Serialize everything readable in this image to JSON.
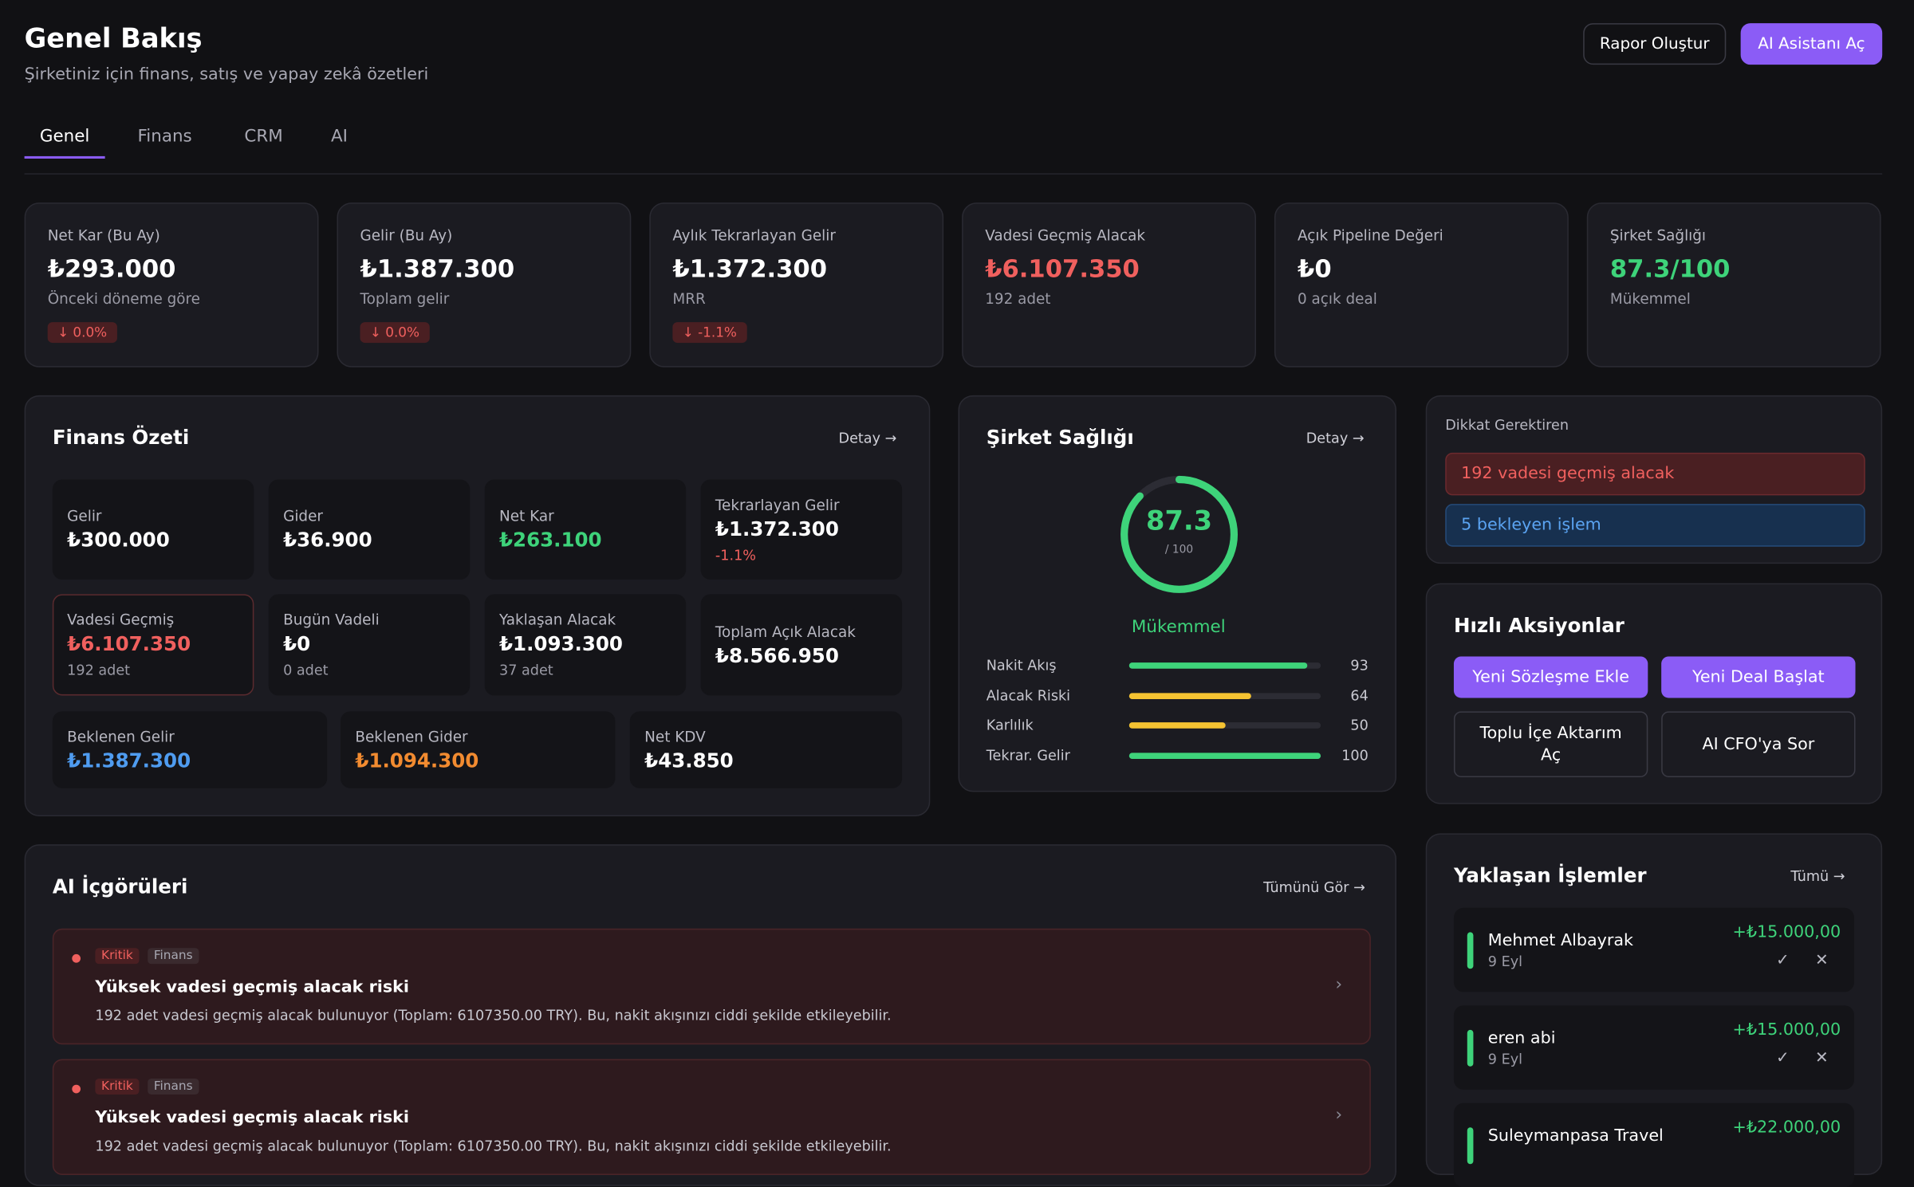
{
  "header": {
    "title": "Genel Bakış",
    "subtitle": "Şirketiniz için finans, satış ve yapay zekâ özetleri",
    "buttons": [
      "Rapor Oluştur",
      "AI Asistanı Aç"
    ]
  },
  "tabs": [
    "Genel",
    "Finans",
    "CRM",
    "AI"
  ],
  "kpis": [
    {
      "label": "Net Kar (Bu Ay)",
      "value": "₺293.000",
      "sub": "Önceki döneme göre",
      "badge": "↓ 0.0%",
      "color": "#ffffff"
    },
    {
      "label": "Gelir (Bu Ay)",
      "value": "₺1.387.300",
      "sub": "Toplam gelir",
      "badge": "↓ 0.0%",
      "color": "#ffffff"
    },
    {
      "label": "Aylık Tekrarlayan Gelir",
      "value": "₺1.372.300",
      "sub": "MRR",
      "badge": "↓ -1.1%",
      "color": "#ffffff"
    },
    {
      "label": "Vadesi Geçmiş Alacak",
      "value": "₺6.107.350",
      "sub": "192 adet",
      "color": "#f0605e"
    },
    {
      "label": "Açık Pipeline Değeri",
      "value": "₺0",
      "sub": "0 açık deal",
      "color": "#ffffff"
    },
    {
      "label": "Şirket Sağlığı",
      "value": "87.3/100",
      "sub": "Mükemmel",
      "color": "#3ed37a"
    }
  ],
  "finance": {
    "title": "Finans Özeti",
    "link": "Detay →",
    "cells": [
      {
        "label": "Gelir",
        "value": "₺300.000",
        "color": "#ffffff"
      },
      {
        "label": "Gider",
        "value": "₺36.900",
        "color": "#ffffff"
      },
      {
        "label": "Net Kar",
        "value": "₺263.100",
        "color": "#3ed37a"
      },
      {
        "label": "Tekrarlayan Gelir",
        "value": "₺1.372.300",
        "sub": "-1.1%",
        "sub_color": "#f0605e",
        "color": "#ffffff"
      },
      {
        "label": "Vadesi Geçmiş",
        "value": "₺6.107.350",
        "sub": "192 adet",
        "color": "#f0605e",
        "alert": true
      },
      {
        "label": "Bugün Vadeli",
        "value": "₺0",
        "sub": "0 adet",
        "color": "#ffffff"
      },
      {
        "label": "Yaklaşan Alacak",
        "value": "₺1.093.300",
        "sub": "37 adet",
        "color": "#ffffff"
      },
      {
        "label": "Toplam Açık Alacak",
        "value": "₺8.566.950",
        "color": "#ffffff"
      },
      {
        "label": "Beklenen Gelir",
        "value": "₺1.387.300",
        "color": "#4f9cf0"
      },
      {
        "label": "Beklenen Gider",
        "value": "₺1.094.300",
        "color": "#f28b30"
      },
      {
        "label": "Net KDV",
        "value": "₺43.850",
        "color": "#ffffff"
      }
    ]
  },
  "health": {
    "title": "Şirket Sağlığı",
    "link": "Detay →",
    "score": 87.3,
    "max": {
      "value": 100,
      "label": "/ 100"
    },
    "status": "Mükemmel",
    "color": "#3ed37a",
    "factors": [
      {
        "name": "Nakit Akış",
        "value": 93,
        "color": "#3ed37a"
      },
      {
        "name": "Alacak Riski",
        "value": 64,
        "color": "#f5c332"
      },
      {
        "name": "Karlılık",
        "value": 50,
        "color": "#f5c332"
      },
      {
        "name": "Tekrar. Gelir",
        "value": 100,
        "color": "#3ed37a"
      }
    ]
  },
  "attention": {
    "title": "Dikkat Gerektiren",
    "items": [
      {
        "text": "192 vadesi geçmiş alacak",
        "tone": "red"
      },
      {
        "text": "5 bekleyen işlem",
        "tone": "blue"
      }
    ]
  },
  "quick_actions": {
    "title": "Hızlı Aksiyonlar",
    "primary": [
      "Yeni Sözleşme Ekle",
      "Yeni Deal Başlat"
    ],
    "secondary": [
      "Toplu İçe Aktarım Aç",
      "AI CFO'ya Sor"
    ]
  },
  "insights": {
    "title": "AI İçgörüleri",
    "link": "Tümünü Gör →",
    "items": [
      {
        "severity": "Kritik",
        "category": "Finans",
        "title": "Yüksek vadesi geçmiş alacak riski",
        "text": "192 adet vadesi geçmiş alacak bulunuyor (Toplam: 6107350.00 TRY). Bu, nakit akışınızı ciddi şekilde etkileyebilir."
      },
      {
        "severity": "Kritik",
        "category": "Finans",
        "title": "Yüksek vadesi geçmiş alacak riski",
        "text": "192 adet vadesi geçmiş alacak bulunuyor (Toplam: 6107350.00 TRY). Bu, nakit akışınızı ciddi şekilde etkileyebilir."
      }
    ]
  },
  "upcoming": {
    "title": "Yaklaşan İşlemler",
    "link": "Tümü →",
    "items": [
      {
        "name": "Mehmet Albayrak",
        "date": "9 Eyl",
        "amount": "+₺15.000,00"
      },
      {
        "name": "eren abi",
        "date": "9 Eyl",
        "amount": "+₺15.000,00"
      },
      {
        "name": "Suleymanpasa Travel",
        "amount": "+₺22.000,00"
      }
    ]
  }
}
